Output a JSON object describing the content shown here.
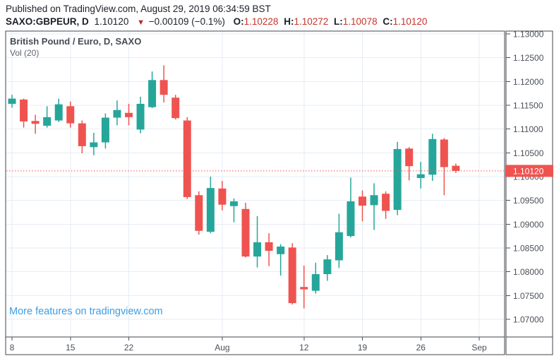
{
  "header": {
    "publish_line": "Published on TradingView.com, August 29, 2019 06:34:59 BST",
    "symbol": "SAXO:GBPEUR, D",
    "last_value": "1.10120",
    "down_triangle": "▼",
    "change": "−0.00109 (−0.1%)",
    "ohlc": [
      {
        "label": "O:",
        "value": "1.10228"
      },
      {
        "label": "H:",
        "value": "1.10272"
      },
      {
        "label": "L:",
        "value": "1.10078"
      },
      {
        "label": "C:",
        "value": "1.10120"
      }
    ]
  },
  "chart": {
    "title": "British Pound / Euro, D, SAXO",
    "indicator": "Vol (20)",
    "link_text": "More features on tradingview.com"
  },
  "colors": {
    "up": "#26a69a",
    "down": "#ef5350",
    "grid": "#e6edf4",
    "frame": "#40454d",
    "axis_text": "#4a4f58",
    "price_line": "#f0524e",
    "price_tag_bg": "#ef5350",
    "price_tag_text": "#ffffff",
    "link": "#3e9de5",
    "value_red": "#c5332b"
  },
  "chart_data": {
    "type": "candlestick",
    "symbol": "SAXO:GBPEUR",
    "timeframe": "D",
    "title": "British Pound / Euro, D, SAXO",
    "indicator": "Vol (20)",
    "grid": true,
    "y_axis": {
      "min": 1.07,
      "max": 1.13,
      "step": 0.005,
      "labels": [
        "1.13000",
        "1.12500",
        "1.12000",
        "1.11500",
        "1.11000",
        "1.10500",
        "1.10000",
        "1.09500",
        "1.09000",
        "1.08500",
        "1.08000",
        "1.07500",
        "1.07000"
      ]
    },
    "x_axis": {
      "labels": [
        {
          "text": "8",
          "index": 0
        },
        {
          "text": "15",
          "index": 5
        },
        {
          "text": "22",
          "index": 10
        },
        {
          "text": "Aug",
          "index": 18
        },
        {
          "text": "12",
          "index": 25
        },
        {
          "text": "19",
          "index": 30
        },
        {
          "text": "26",
          "index": 35
        },
        {
          "text": "Sep",
          "index": 40
        }
      ]
    },
    "last_price": 1.1012,
    "last_price_label": "1.10120",
    "candles": [
      {
        "o": 1.1153,
        "h": 1.1172,
        "l": 1.1145,
        "c": 1.1164
      },
      {
        "o": 1.1162,
        "h": 1.1164,
        "l": 1.1103,
        "c": 1.1116
      },
      {
        "o": 1.1117,
        "h": 1.113,
        "l": 1.109,
        "c": 1.1111
      },
      {
        "o": 1.1107,
        "h": 1.1148,
        "l": 1.1103,
        "c": 1.1125
      },
      {
        "o": 1.1118,
        "h": 1.1164,
        "l": 1.1115,
        "c": 1.1152
      },
      {
        "o": 1.1148,
        "h": 1.1158,
        "l": 1.1103,
        "c": 1.1112
      },
      {
        "o": 1.1112,
        "h": 1.1118,
        "l": 1.1049,
        "c": 1.1064
      },
      {
        "o": 1.1062,
        "h": 1.1092,
        "l": 1.1045,
        "c": 1.1072
      },
      {
        "o": 1.1072,
        "h": 1.1133,
        "l": 1.1059,
        "c": 1.1124
      },
      {
        "o": 1.1124,
        "h": 1.116,
        "l": 1.1108,
        "c": 1.114
      },
      {
        "o": 1.1134,
        "h": 1.1153,
        "l": 1.1108,
        "c": 1.1125
      },
      {
        "o": 1.1099,
        "h": 1.1168,
        "l": 1.1091,
        "c": 1.1153
      },
      {
        "o": 1.1146,
        "h": 1.1221,
        "l": 1.1144,
        "c": 1.1203
      },
      {
        "o": 1.1203,
        "h": 1.1234,
        "l": 1.1156,
        "c": 1.1172
      },
      {
        "o": 1.1166,
        "h": 1.1172,
        "l": 1.112,
        "c": 1.1123
      },
      {
        "o": 1.1118,
        "h": 1.1125,
        "l": 1.0953,
        "c": 1.0957
      },
      {
        "o": 1.0961,
        "h": 1.0969,
        "l": 1.0878,
        "c": 1.0886
      },
      {
        "o": 1.0884,
        "h": 1.1,
        "l": 1.0881,
        "c": 1.0976
      },
      {
        "o": 1.0975,
        "h": 1.0991,
        "l": 1.0929,
        "c": 1.0941
      },
      {
        "o": 1.0938,
        "h": 1.0954,
        "l": 1.0904,
        "c": 1.0948
      },
      {
        "o": 1.0932,
        "h": 1.0945,
        "l": 1.083,
        "c": 1.0832
      },
      {
        "o": 1.0832,
        "h": 1.0917,
        "l": 1.0809,
        "c": 1.0862
      },
      {
        "o": 1.0862,
        "h": 1.0881,
        "l": 1.0812,
        "c": 1.0844
      },
      {
        "o": 1.0837,
        "h": 1.0858,
        "l": 1.0792,
        "c": 1.0853
      },
      {
        "o": 1.0851,
        "h": 1.086,
        "l": 1.0731,
        "c": 1.0734
      },
      {
        "o": 1.0768,
        "h": 1.0813,
        "l": 1.0723,
        "c": 1.0763
      },
      {
        "o": 1.076,
        "h": 1.0819,
        "l": 1.0754,
        "c": 1.0795
      },
      {
        "o": 1.0795,
        "h": 1.0835,
        "l": 1.0781,
        "c": 1.0826
      },
      {
        "o": 1.0824,
        "h": 1.0922,
        "l": 1.0808,
        "c": 1.0883
      },
      {
        "o": 1.0875,
        "h": 1.0998,
        "l": 1.0872,
        "c": 1.0948
      },
      {
        "o": 1.0958,
        "h": 1.0971,
        "l": 1.0906,
        "c": 1.0939
      },
      {
        "o": 1.094,
        "h": 1.0986,
        "l": 1.0888,
        "c": 1.0961
      },
      {
        "o": 1.0964,
        "h": 1.0969,
        "l": 1.0911,
        "c": 1.0928
      },
      {
        "o": 1.093,
        "h": 1.1073,
        "l": 1.0919,
        "c": 1.1058
      },
      {
        "o": 1.1059,
        "h": 1.1062,
        "l": 1.0992,
        "c": 1.1022
      },
      {
        "o": 1.0997,
        "h": 1.1031,
        "l": 1.0975,
        "c": 1.1005
      },
      {
        "o": 1.1004,
        "h": 1.109,
        "l": 1.0991,
        "c": 1.1079
      },
      {
        "o": 1.1078,
        "h": 1.1081,
        "l": 1.0961,
        "c": 1.102
      },
      {
        "o": 1.10228,
        "h": 1.10272,
        "l": 1.10078,
        "c": 1.1012
      }
    ]
  }
}
